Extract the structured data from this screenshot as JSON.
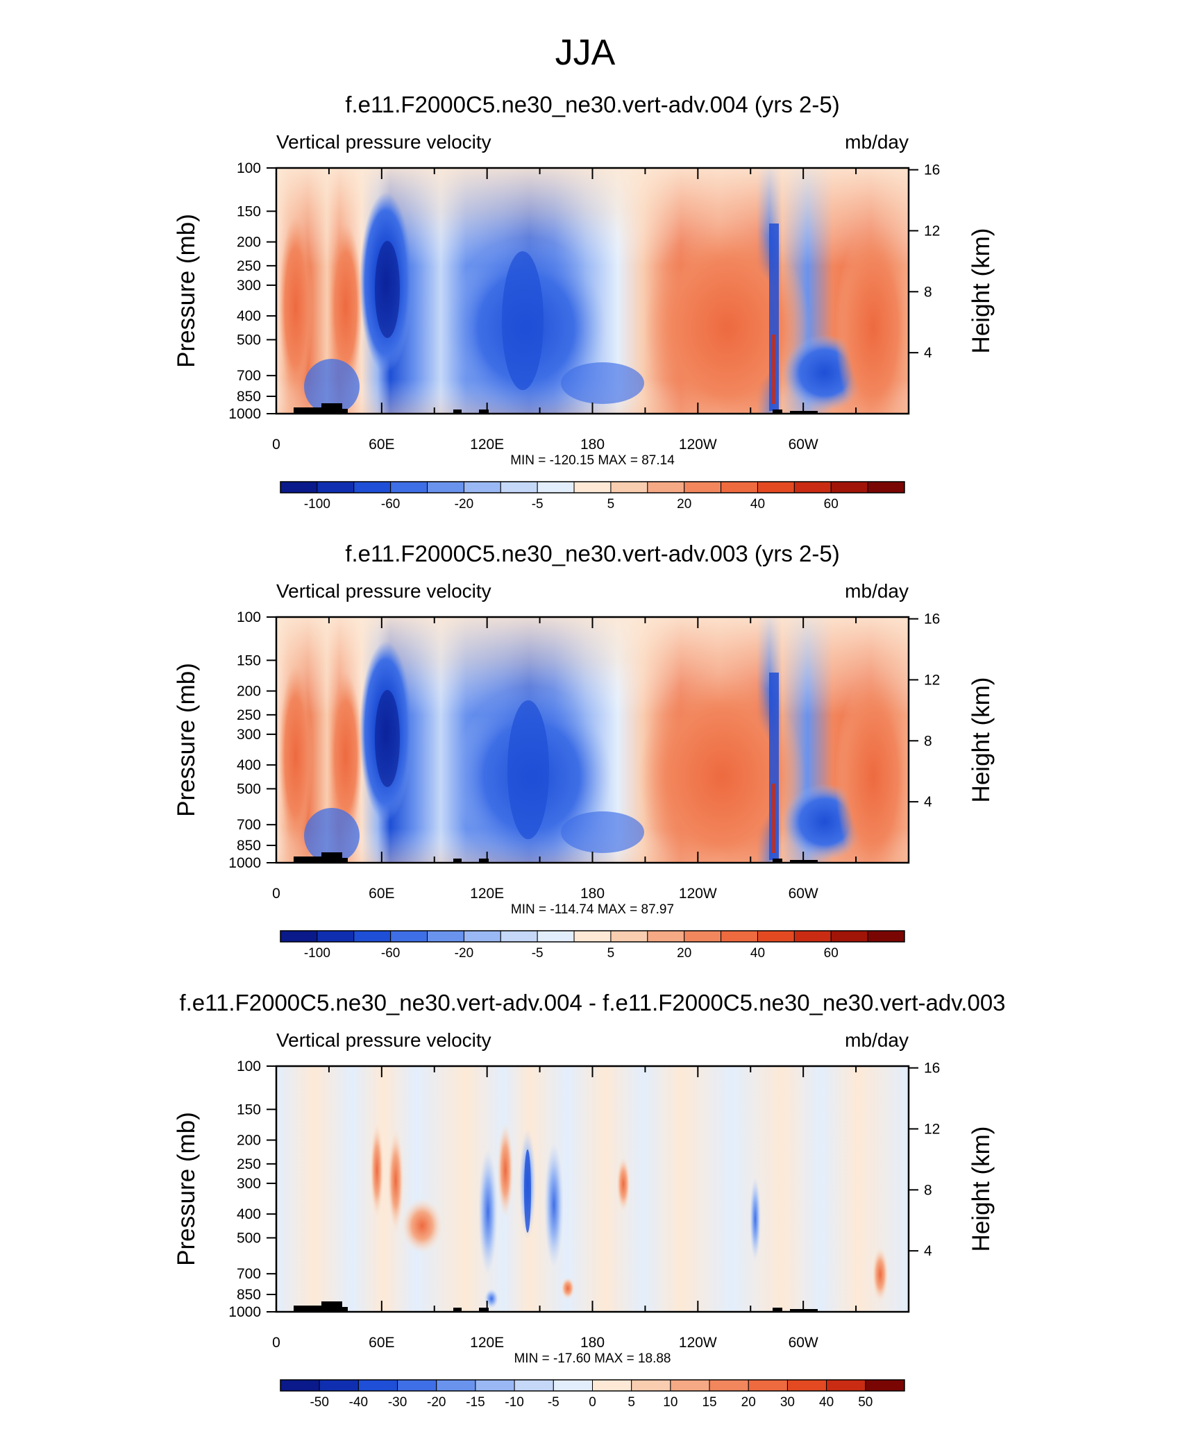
{
  "chart_data": {
    "type": "heatmap",
    "title": "JJA",
    "panels": [
      {
        "title": "f.e11.F2000C5.ne30_ne30.vert-adv.004 (yrs 2-5)",
        "left_label": "Vertical pressure velocity",
        "right_label": "mb/day",
        "ylabel": "Pressure (mb)",
        "y2label": "Height (km)",
        "min_max": "MIN = -120.15  MAX =  87.14",
        "min": -120.15,
        "max": 87.14,
        "colorbar_labels": [
          "-100",
          "-60",
          "-20",
          "-5",
          "5",
          "20",
          "40",
          "60"
        ],
        "colorbar_colors": [
          "#0a1a8a",
          "#0f2fb0",
          "#1e4fd6",
          "#3f6fe6",
          "#6a93ee",
          "#9ab8f4",
          "#c5d8f8",
          "#e3eefc",
          "#fde9d6",
          "#f9cdb0",
          "#f5a985",
          "#f2865d",
          "#ee6a3f",
          "#e34a22",
          "#c92c12",
          "#a01508",
          "#7a0603"
        ]
      },
      {
        "title": "f.e11.F2000C5.ne30_ne30.vert-adv.003 (yrs 2-5)",
        "left_label": "Vertical pressure velocity",
        "right_label": "mb/day",
        "ylabel": "Pressure (mb)",
        "y2label": "Height (km)",
        "min_max": "MIN = -114.74  MAX =  87.97",
        "min": -114.74,
        "max": 87.97,
        "colorbar_labels": [
          "-100",
          "-60",
          "-20",
          "-5",
          "5",
          "20",
          "40",
          "60"
        ],
        "colorbar_colors": [
          "#0a1a8a",
          "#0f2fb0",
          "#1e4fd6",
          "#3f6fe6",
          "#6a93ee",
          "#9ab8f4",
          "#c5d8f8",
          "#e3eefc",
          "#fde9d6",
          "#f9cdb0",
          "#f5a985",
          "#f2865d",
          "#ee6a3f",
          "#e34a22",
          "#c92c12",
          "#a01508",
          "#7a0603"
        ]
      },
      {
        "title": "f.e11.F2000C5.ne30_ne30.vert-adv.004 - f.e11.F2000C5.ne30_ne30.vert-adv.003",
        "left_label": "Vertical pressure velocity",
        "right_label": "mb/day",
        "ylabel": "Pressure (mb)",
        "y2label": "Height (km)",
        "min_max": "MIN = -17.60  MAX =  18.88",
        "min": -17.6,
        "max": 18.88,
        "colorbar_labels": [
          "-50",
          "-40",
          "-30",
          "-20",
          "-15",
          "-10",
          "-5",
          "0",
          "5",
          "10",
          "15",
          "20",
          "30",
          "40",
          "50"
        ],
        "colorbar_colors": [
          "#0a1a8a",
          "#0f2fb0",
          "#1e4fd6",
          "#3f6fe6",
          "#6a93ee",
          "#9ab8f4",
          "#c5d8f8",
          "#e3eefc",
          "#fde9d6",
          "#f9cdb0",
          "#f5a985",
          "#f2865d",
          "#ee6a3f",
          "#e34a22",
          "#c92c12",
          "#7a0603"
        ]
      }
    ],
    "x_ticks": [
      "0",
      "60E",
      "120E",
      "180",
      "120W",
      "60W"
    ],
    "y_ticks": [
      "100",
      "150",
      "200",
      "250",
      "300",
      "400",
      "500",
      "700",
      "850",
      "1000"
    ],
    "y2_ticks": [
      "16",
      "12",
      "8",
      "4"
    ],
    "ylim": [
      1000,
      100
    ],
    "y2lim": [
      0,
      16
    ]
  }
}
